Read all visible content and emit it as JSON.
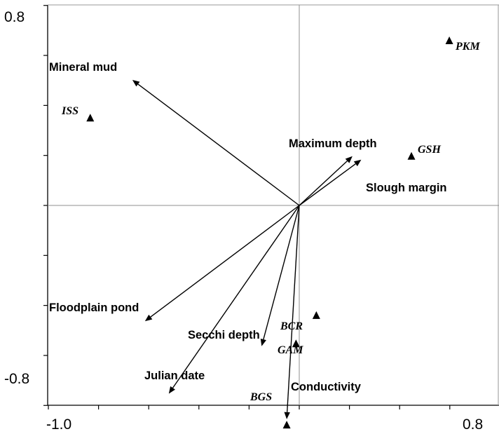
{
  "chart_data": {
    "type": "scatter",
    "title": "",
    "xlabel": "",
    "ylabel": "",
    "xlim": [
      -1.0,
      0.8
    ],
    "ylim": [
      -0.8,
      0.8
    ],
    "x_tick_labels": [
      "-1.0",
      "0.8"
    ],
    "y_tick_labels": [
      "0.8",
      "-0.8"
    ],
    "grid": false,
    "origin_lines": true,
    "vectors": [
      {
        "name": "Mineral mud",
        "x": -0.665,
        "y": 0.502
      },
      {
        "name": "Maximum depth",
        "x": 0.212,
        "y": 0.197
      },
      {
        "name": "Slough margin",
        "x": 0.247,
        "y": 0.183
      },
      {
        "name": "Floodplain pond",
        "x": -0.615,
        "y": -0.463
      },
      {
        "name": "Secchi depth",
        "x": -0.15,
        "y": -0.563
      },
      {
        "name": "Julian date",
        "x": -0.52,
        "y": -0.753
      },
      {
        "name": "Conductivity",
        "x": -0.05,
        "y": -0.855
      }
    ],
    "sites": [
      {
        "name": "PKM",
        "x": 0.598,
        "y": 0.659
      },
      {
        "name": "ISS",
        "x": -0.833,
        "y": 0.35
      },
      {
        "name": "GSH",
        "x": 0.447,
        "y": 0.197
      },
      {
        "name": "BCR",
        "x": 0.068,
        "y": -0.44
      },
      {
        "name": "GAM",
        "x": -0.013,
        "y": -0.553
      },
      {
        "name": "BGS",
        "x": -0.05,
        "y": -0.878
      }
    ]
  }
}
